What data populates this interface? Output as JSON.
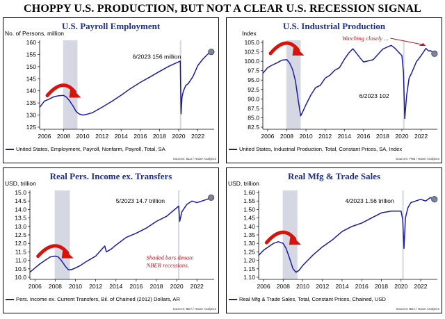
{
  "title": "CHOPPY U.S. PRODUCTION, BUT NOT A CLEAR U.S. RECESSION SIGNAL",
  "colors": {
    "line": "#1a1aa8",
    "title": "#1f2f8c",
    "recession_bar": "#d5d8e2",
    "arrow": "#d7140c",
    "callout": "#c0141e",
    "endpoint": "#7c8497"
  },
  "chart_data": [
    {
      "type": "line",
      "title": "U.S. Payroll Employment",
      "unit_label": "No. of Persons, million",
      "ylim": [
        125,
        160
      ],
      "yticks": [
        125,
        130,
        135,
        140,
        145,
        150,
        155,
        160
      ],
      "xlim": [
        2005.5,
        2023.7
      ],
      "xticks": [
        2006,
        2008,
        2010,
        2012,
        2014,
        2016,
        2018,
        2020,
        2022
      ],
      "recession": [
        2007.95,
        2009.45
      ],
      "series": [
        {
          "name": "United States, Employment, Payroll, Nonfarm, Payroll, Total, SA",
          "x": [
            2005.5,
            2006,
            2006.5,
            2007,
            2007.5,
            2008,
            2008.3,
            2008.6,
            2009,
            2009.3,
            2009.6,
            2010,
            2010.5,
            2011,
            2012,
            2013,
            2014,
            2015,
            2016,
            2017,
            2018,
            2019,
            2020,
            2020.17,
            2020.25,
            2020.35,
            2020.5,
            2020.75,
            2021,
            2021.5,
            2022,
            2022.5,
            2023,
            2023.4
          ],
          "y": [
            133.2,
            135.8,
            136.6,
            137.6,
            138.0,
            138.1,
            137.4,
            136.0,
            133.6,
            131.5,
            130.5,
            130.0,
            130.4,
            131.0,
            133.2,
            135.6,
            138.2,
            141.0,
            143.5,
            145.7,
            148.0,
            150.2,
            152.0,
            152.3,
            130.5,
            137.5,
            140.0,
            142.3,
            143.0,
            146.0,
            150.5,
            153.0,
            155.0,
            156.1
          ]
        }
      ],
      "endpoint": {
        "x": 2023.4,
        "y": 156.1
      },
      "annotation": "6/2023 156 million",
      "arrow": {
        "from": [
          2006.3,
          139.5
        ],
        "to": [
          2009.6,
          139.5
        ]
      },
      "source": "Sources: BLS / Haver Analytics"
    },
    {
      "type": "line",
      "title": "U.S. Industrial Production",
      "unit_label": "Index",
      "ylim": [
        82.5,
        105
      ],
      "yticks": [
        82.5,
        85.0,
        87.5,
        90.0,
        92.5,
        95.0,
        97.5,
        100.0,
        102.5,
        105.0
      ],
      "xlim": [
        2005.5,
        2023.7
      ],
      "xticks": [
        2006,
        2008,
        2010,
        2012,
        2014,
        2016,
        2018,
        2020,
        2022
      ],
      "recession": [
        2007.95,
        2009.45
      ],
      "series": [
        {
          "name": "United States, Industrial Production, Total, Constant Prices, SA, Index",
          "x": [
            2005.5,
            2006,
            2006.5,
            2007,
            2007.5,
            2008,
            2008.3,
            2008.6,
            2008.9,
            2009.2,
            2009.45,
            2009.7,
            2010,
            2010.5,
            2011,
            2011.5,
            2012,
            2012.5,
            2013,
            2013.5,
            2014,
            2014.5,
            2014.9,
            2015.3,
            2015.7,
            2016,
            2016.5,
            2017,
            2017.5,
            2018,
            2018.5,
            2018.9,
            2019.3,
            2019.7,
            2020,
            2020.17,
            2020.3,
            2020.5,
            2020.75,
            2021,
            2021.5,
            2022,
            2022.5,
            2022.8,
            2023,
            2023.4
          ],
          "y": [
            96.8,
            98.3,
            99.0,
            99.6,
            100.3,
            100.4,
            99.5,
            97.8,
            94.8,
            89.5,
            85.5,
            86.8,
            88.5,
            91.0,
            93.0,
            93.6,
            95.5,
            96.3,
            97.6,
            98.3,
            100.5,
            102.3,
            103.3,
            102.0,
            100.7,
            99.8,
            100.1,
            100.4,
            101.8,
            103.2,
            103.8,
            104.2,
            103.4,
            102.3,
            101.5,
            97.0,
            84.8,
            91.0,
            95.5,
            96.8,
            99.8,
            101.5,
            103.4,
            102.7,
            102.8,
            102.0
          ]
        }
      ],
      "endpoint": {
        "x": 2023.4,
        "y": 102.0
      },
      "annotation": "6/2023 102",
      "callout": "Watching closely ...",
      "arrow": {
        "from": [
          2006.3,
          103.0
        ],
        "to": [
          2009.6,
          103.0
        ]
      },
      "source": "Sources: FRB / Haver Analytics"
    },
    {
      "type": "line",
      "title": "Real Pers. Income ex. Transfers",
      "unit_label": "USD, trillion",
      "ylim": [
        10,
        15
      ],
      "yticks": [
        10.0,
        10.5,
        11.0,
        11.5,
        12.0,
        12.5,
        13.0,
        13.5,
        14.0,
        14.5,
        15.0
      ],
      "xlim": [
        2005.5,
        2023.7
      ],
      "xticks": [
        2006,
        2008,
        2010,
        2012,
        2014,
        2016,
        2018,
        2020,
        2022
      ],
      "recession": [
        2007.95,
        2009.45
      ],
      "series": [
        {
          "name": "Pers. Income ex. Current Transfers, Bil. of Chained (2012) Dollars, AR",
          "x": [
            2005.5,
            2006,
            2006.5,
            2007,
            2007.5,
            2008,
            2008.3,
            2008.6,
            2009,
            2009.3,
            2009.6,
            2010,
            2010.5,
            2011,
            2012,
            2012.9,
            2013.05,
            2013.5,
            2014,
            2015,
            2016,
            2017,
            2018,
            2019,
            2020,
            2020.2,
            2020.3,
            2020.5,
            2021,
            2021.5,
            2022,
            2022.5,
            2023,
            2023.4
          ],
          "y": [
            10.3,
            10.55,
            10.8,
            11.0,
            11.2,
            11.25,
            11.2,
            11.0,
            10.65,
            10.45,
            10.45,
            10.55,
            10.7,
            10.9,
            11.25,
            11.85,
            11.5,
            11.65,
            11.9,
            12.35,
            12.6,
            12.9,
            13.3,
            13.6,
            14.1,
            14.2,
            13.3,
            13.85,
            14.3,
            14.5,
            14.4,
            14.5,
            14.6,
            14.7
          ]
        }
      ],
      "endpoint": {
        "x": 2023.4,
        "y": 14.7
      },
      "annotation": "5/2023 14.7 trillion",
      "callout_lines": [
        "Shaded bars denote",
        "NBER recessions."
      ],
      "arrow": {
        "from": [
          2006.3,
          11.45
        ],
        "to": [
          2009.6,
          11.45
        ]
      },
      "source": "Sources: BEA / Haver Analytics"
    },
    {
      "type": "line",
      "title": "Real Mfg & Trade Sales",
      "unit_label": "USD, trillion",
      "ylim": [
        1.1,
        1.6
      ],
      "yticks": [
        1.1,
        1.15,
        1.2,
        1.25,
        1.3,
        1.35,
        1.4,
        1.45,
        1.5,
        1.55,
        1.6
      ],
      "xlim": [
        2005.5,
        2023.7
      ],
      "xticks": [
        2006,
        2008,
        2010,
        2012,
        2014,
        2016,
        2018,
        2020,
        2022
      ],
      "recession": [
        2007.95,
        2009.45
      ],
      "series": [
        {
          "name": "Real Mfg & Trade Sales, Total, Constant Prices, Chained, USD",
          "x": [
            2005.5,
            2006,
            2006.5,
            2007,
            2007.5,
            2008,
            2008.3,
            2008.6,
            2009,
            2009.3,
            2009.6,
            2010,
            2010.5,
            2011,
            2012,
            2013,
            2014,
            2015,
            2016,
            2017,
            2018,
            2019,
            2020,
            2020.17,
            2020.3,
            2020.45,
            2020.7,
            2021,
            2021.5,
            2022,
            2022.5,
            2023,
            2023.4
          ],
          "y": [
            1.23,
            1.26,
            1.28,
            1.3,
            1.31,
            1.3,
            1.27,
            1.22,
            1.15,
            1.13,
            1.14,
            1.17,
            1.2,
            1.23,
            1.28,
            1.32,
            1.37,
            1.4,
            1.42,
            1.45,
            1.48,
            1.49,
            1.49,
            1.44,
            1.27,
            1.45,
            1.51,
            1.54,
            1.55,
            1.56,
            1.55,
            1.57,
            1.56
          ]
        }
      ],
      "endpoint": {
        "x": 2023.4,
        "y": 1.56
      },
      "annotation": "4/2023 1.56 trillion",
      "arrow": {
        "from": [
          2006.3,
          1.325
        ],
        "to": [
          2009.6,
          1.325
        ]
      },
      "source": "Sources: BEA / Haver Analytics"
    }
  ]
}
